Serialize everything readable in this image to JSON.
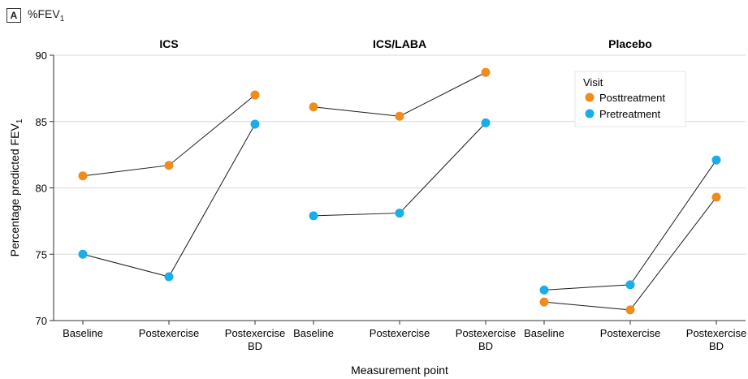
{
  "panel": {
    "letter": "A",
    "title": "%FEV",
    "title_sub": "1"
  },
  "colors": {
    "posttreatment": "#f08c1e",
    "pretreatment": "#19aee8",
    "line": "#1a1a1a",
    "grid": "#d9d9d9"
  },
  "chart_data": {
    "type": "line",
    "xlabel": "Measurement point",
    "ylabel": "Percentage predicted FEV",
    "ylabel_sub": "1",
    "ylim": [
      70,
      90
    ],
    "yticks": [
      70,
      75,
      80,
      85,
      90
    ],
    "grid": true,
    "legend": {
      "title": "Visit",
      "placement": "top-right (inside Placebo panel)",
      "entries": [
        "Posttreatment",
        "Pretreatment"
      ]
    },
    "categories": [
      [
        "Baseline"
      ],
      [
        "Postexercise"
      ],
      [
        "Postexercise",
        "BD"
      ]
    ],
    "facets": [
      {
        "title": "ICS",
        "series": [
          {
            "name": "Posttreatment",
            "values": [
              80.9,
              81.7,
              87.0
            ]
          },
          {
            "name": "Pretreatment",
            "values": [
              75.0,
              73.3,
              84.8
            ]
          }
        ]
      },
      {
        "title": "ICS/LABA",
        "series": [
          {
            "name": "Posttreatment",
            "values": [
              86.1,
              85.4,
              88.7
            ]
          },
          {
            "name": "Pretreatment",
            "values": [
              77.9,
              78.1,
              84.9
            ]
          }
        ]
      },
      {
        "title": "Placebo",
        "series": [
          {
            "name": "Posttreatment",
            "values": [
              71.4,
              70.8,
              79.3
            ]
          },
          {
            "name": "Pretreatment",
            "values": [
              72.3,
              72.7,
              82.1
            ]
          }
        ]
      }
    ]
  }
}
